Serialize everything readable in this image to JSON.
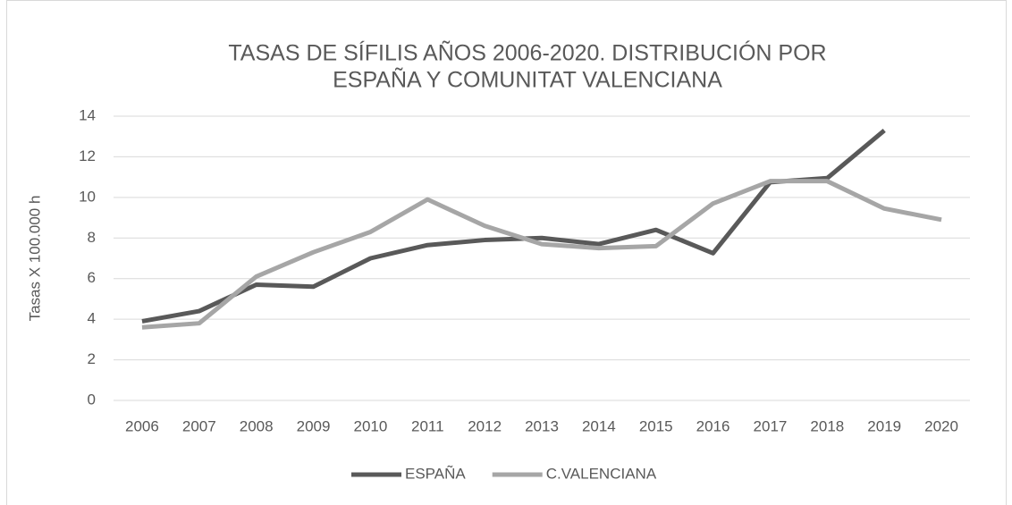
{
  "chart_data": {
    "type": "line",
    "title": [
      "TASAS DE SÍFILIS AÑOS 2006-2020. DISTRIBUCIÓN POR",
      "ESPAÑA Y COMUNITAT VALENCIANA"
    ],
    "y_label": "Tasas X 100.000 h",
    "categories": [
      "2006",
      "2007",
      "2008",
      "2009",
      "2010",
      "2011",
      "2012",
      "2013",
      "2014",
      "2015",
      "2016",
      "2017",
      "2018",
      "2019",
      "2020"
    ],
    "series": [
      {
        "name": "ESPAÑA",
        "color": "#595959",
        "values": [
          3.9,
          4.4,
          5.7,
          5.6,
          7.0,
          7.65,
          7.9,
          8.0,
          7.7,
          8.4,
          7.25,
          10.75,
          10.95,
          13.3,
          null
        ]
      },
      {
        "name": "C.VALENCIANA",
        "color": "#a6a6a6",
        "values": [
          3.6,
          3.8,
          6.1,
          7.3,
          8.3,
          9.9,
          8.6,
          7.7,
          7.5,
          7.6,
          9.7,
          10.8,
          10.8,
          9.45,
          8.9
        ]
      }
    ],
    "ylim": [
      0,
      14
    ],
    "yticks": [
      0,
      2,
      4,
      6,
      8,
      10,
      12,
      14
    ],
    "grid": true,
    "legend": "bottom"
  }
}
